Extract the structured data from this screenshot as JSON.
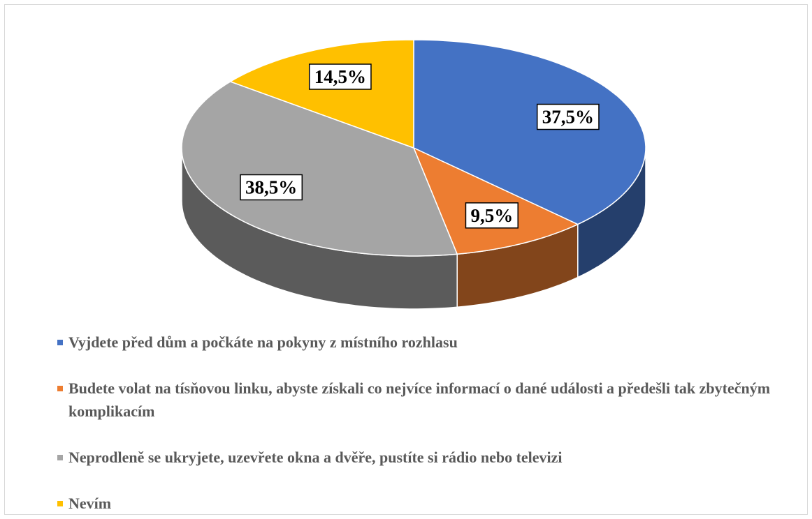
{
  "chart_data": {
    "type": "pie",
    "categories": [
      "Vyjdete před dům a počkáte na pokyny z místního rozhlasu",
      "Budete volat na tísňovou linku, abyste získali co nejvíce informací o dané události a předešli tak zbytečným komplikacím",
      "Neprodleně se ukryjete, uzevřete okna a dvěře, pustíte si rádio nebo televizi",
      "Nevím"
    ],
    "values": [
      37.5,
      9.5,
      38.5,
      14.5
    ],
    "value_labels": [
      "37,5%",
      "9,5%",
      "38,5%",
      "14,5%"
    ],
    "colors": [
      "#4472c4",
      "#ed7d31",
      "#a5a5a5",
      "#ffc000"
    ],
    "legend": "bottom"
  }
}
